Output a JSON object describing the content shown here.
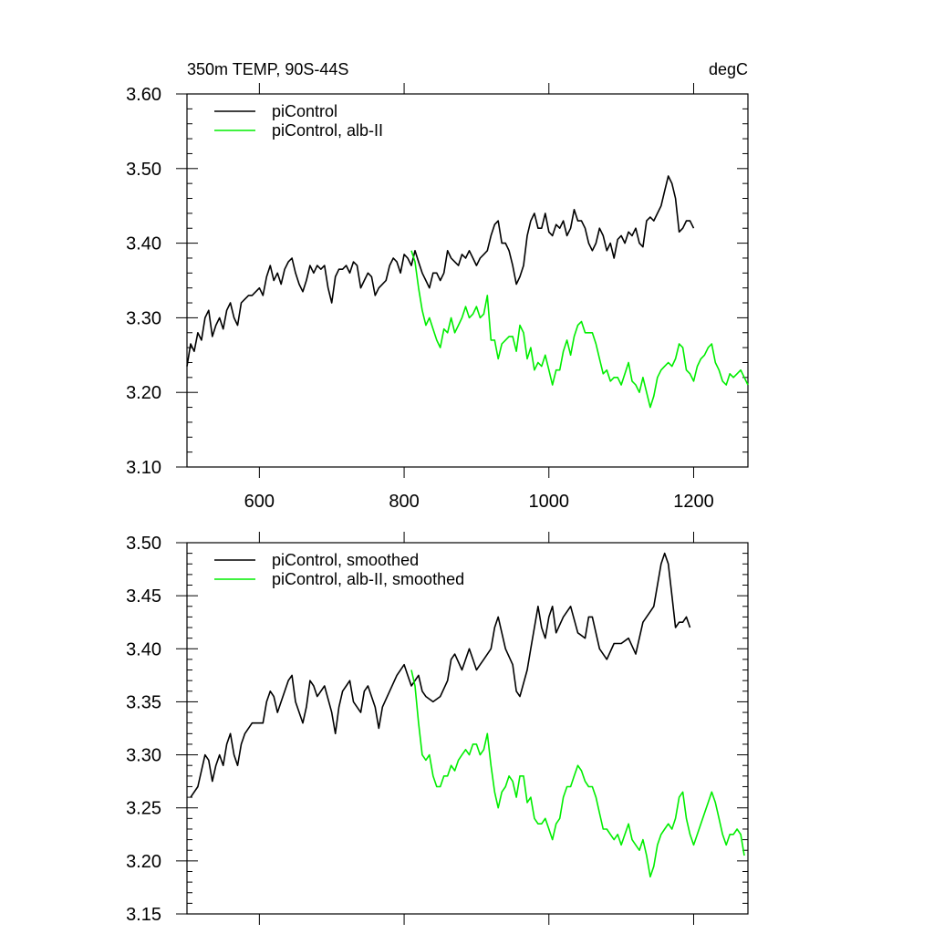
{
  "header": {
    "title": "350m TEMP, 90S-44S",
    "units": "degC"
  },
  "colors": {
    "piControl": "#000000",
    "alb": "#00ee00",
    "axis": "#000000"
  },
  "chart_data": [
    {
      "type": "line",
      "title": "350m TEMP, 90S-44S",
      "units": "degC",
      "xlim": [
        500,
        1275
      ],
      "ylim": [
        3.1,
        3.6
      ],
      "x_ticks": [
        600,
        800,
        1000,
        1200
      ],
      "x_tick_labels": [
        "600",
        "800",
        "1000",
        "1200"
      ],
      "y_ticks": [
        3.1,
        3.2,
        3.3,
        3.4,
        3.5,
        3.6
      ],
      "y_tick_labels": [
        "3.10",
        "3.20",
        "3.30",
        "3.40",
        "3.50",
        "3.60"
      ],
      "legend_position": "top-left",
      "series": [
        {
          "name": "piControl",
          "color": "#000000",
          "x": [
            500,
            505,
            510,
            515,
            520,
            525,
            530,
            535,
            540,
            545,
            550,
            555,
            560,
            565,
            570,
            575,
            580,
            585,
            590,
            595,
            600,
            605,
            610,
            615,
            620,
            625,
            630,
            635,
            640,
            645,
            650,
            655,
            660,
            665,
            670,
            675,
            680,
            685,
            690,
            695,
            700,
            705,
            710,
            715,
            720,
            725,
            730,
            735,
            740,
            745,
            750,
            755,
            760,
            765,
            770,
            775,
            780,
            785,
            790,
            795,
            800,
            805,
            810,
            815,
            820,
            825,
            830,
            835,
            840,
            845,
            850,
            855,
            860,
            865,
            870,
            875,
            880,
            885,
            890,
            895,
            900,
            905,
            910,
            915,
            920,
            925,
            930,
            935,
            940,
            945,
            950,
            955,
            960,
            965,
            970,
            975,
            980,
            985,
            990,
            995,
            1000,
            1005,
            1010,
            1015,
            1020,
            1025,
            1030,
            1035,
            1040,
            1045,
            1050,
            1055,
            1060,
            1065,
            1070,
            1075,
            1080,
            1085,
            1090,
            1095,
            1100,
            1105,
            1110,
            1115,
            1120,
            1125,
            1130,
            1135,
            1140,
            1145,
            1150,
            1155,
            1160,
            1165,
            1170,
            1175,
            1180,
            1185,
            1190,
            1195,
            1200
          ],
          "values": [
            3.235,
            3.265,
            3.255,
            3.28,
            3.27,
            3.3,
            3.31,
            3.275,
            3.29,
            3.3,
            3.285,
            3.31,
            3.32,
            3.3,
            3.29,
            3.32,
            3.325,
            3.33,
            3.33,
            3.335,
            3.34,
            3.33,
            3.355,
            3.37,
            3.35,
            3.36,
            3.345,
            3.365,
            3.375,
            3.38,
            3.36,
            3.345,
            3.335,
            3.35,
            3.37,
            3.36,
            3.37,
            3.365,
            3.37,
            3.34,
            3.32,
            3.355,
            3.365,
            3.365,
            3.37,
            3.36,
            3.375,
            3.37,
            3.34,
            3.35,
            3.36,
            3.355,
            3.33,
            3.34,
            3.345,
            3.35,
            3.37,
            3.38,
            3.375,
            3.36,
            3.385,
            3.38,
            3.37,
            3.39,
            3.375,
            3.36,
            3.35,
            3.34,
            3.36,
            3.36,
            3.35,
            3.36,
            3.39,
            3.38,
            3.375,
            3.37,
            3.385,
            3.38,
            3.39,
            3.38,
            3.37,
            3.38,
            3.385,
            3.39,
            3.41,
            3.425,
            3.43,
            3.4,
            3.4,
            3.39,
            3.37,
            3.345,
            3.355,
            3.37,
            3.41,
            3.43,
            3.44,
            3.42,
            3.42,
            3.44,
            3.415,
            3.41,
            3.425,
            3.42,
            3.43,
            3.41,
            3.42,
            3.445,
            3.43,
            3.43,
            3.42,
            3.4,
            3.39,
            3.4,
            3.42,
            3.41,
            3.39,
            3.4,
            3.38,
            3.405,
            3.41,
            3.4,
            3.415,
            3.41,
            3.42,
            3.4,
            3.395,
            3.43,
            3.435,
            3.43,
            3.44,
            3.45,
            3.47,
            3.49,
            3.48,
            3.46,
            3.415,
            3.42,
            3.43,
            3.43,
            3.42
          ]
        },
        {
          "name": "piControl, alb-II",
          "color": "#00ee00",
          "x": [
            810,
            815,
            820,
            825,
            830,
            835,
            840,
            845,
            850,
            855,
            860,
            865,
            870,
            875,
            880,
            885,
            890,
            895,
            900,
            905,
            910,
            915,
            920,
            925,
            930,
            935,
            940,
            945,
            950,
            955,
            960,
            965,
            970,
            975,
            980,
            985,
            990,
            995,
            1000,
            1005,
            1010,
            1015,
            1020,
            1025,
            1030,
            1035,
            1040,
            1045,
            1050,
            1055,
            1060,
            1065,
            1070,
            1075,
            1080,
            1085,
            1090,
            1095,
            1100,
            1105,
            1110,
            1115,
            1120,
            1125,
            1130,
            1135,
            1140,
            1145,
            1150,
            1155,
            1160,
            1165,
            1170,
            1175,
            1180,
            1185,
            1190,
            1195,
            1200,
            1205,
            1210,
            1215,
            1220,
            1225,
            1230,
            1235,
            1240,
            1245,
            1250,
            1255,
            1260,
            1265,
            1270,
            1275
          ],
          "values": [
            3.39,
            3.375,
            3.34,
            3.31,
            3.29,
            3.3,
            3.285,
            3.27,
            3.26,
            3.285,
            3.28,
            3.3,
            3.28,
            3.29,
            3.3,
            3.315,
            3.3,
            3.305,
            3.315,
            3.3,
            3.305,
            3.33,
            3.27,
            3.27,
            3.245,
            3.265,
            3.27,
            3.275,
            3.275,
            3.255,
            3.29,
            3.28,
            3.245,
            3.26,
            3.23,
            3.24,
            3.235,
            3.25,
            3.23,
            3.21,
            3.23,
            3.23,
            3.255,
            3.27,
            3.25,
            3.275,
            3.29,
            3.295,
            3.28,
            3.28,
            3.28,
            3.265,
            3.245,
            3.225,
            3.23,
            3.215,
            3.22,
            3.22,
            3.21,
            3.225,
            3.24,
            3.215,
            3.21,
            3.2,
            3.22,
            3.2,
            3.18,
            3.195,
            3.22,
            3.23,
            3.235,
            3.24,
            3.235,
            3.245,
            3.265,
            3.26,
            3.23,
            3.225,
            3.215,
            3.235,
            3.245,
            3.25,
            3.26,
            3.265,
            3.24,
            3.23,
            3.215,
            3.21,
            3.225,
            3.22,
            3.225,
            3.23,
            3.22,
            3.21
          ]
        }
      ]
    },
    {
      "type": "line",
      "xlim": [
        500,
        1275
      ],
      "ylim": [
        3.15,
        3.5
      ],
      "x_ticks": [
        600,
        800,
        1000,
        1200
      ],
      "y_ticks": [
        3.15,
        3.2,
        3.25,
        3.3,
        3.35,
        3.4,
        3.45,
        3.5
      ],
      "y_tick_labels": [
        "3.15",
        "3.20",
        "3.25",
        "3.30",
        "3.35",
        "3.40",
        "3.45",
        "3.50"
      ],
      "legend_position": "top-left",
      "series": [
        {
          "name": "piControl, smoothed",
          "color": "#000000",
          "x": [
            505,
            515,
            525,
            530,
            535,
            540,
            545,
            550,
            555,
            560,
            565,
            570,
            575,
            580,
            590,
            600,
            605,
            610,
            615,
            620,
            625,
            630,
            640,
            645,
            650,
            660,
            665,
            670,
            675,
            680,
            690,
            700,
            705,
            710,
            715,
            720,
            725,
            730,
            740,
            745,
            750,
            760,
            765,
            770,
            780,
            790,
            800,
            805,
            810,
            820,
            825,
            830,
            840,
            850,
            860,
            865,
            870,
            880,
            890,
            895,
            900,
            905,
            910,
            920,
            925,
            930,
            940,
            950,
            955,
            960,
            970,
            975,
            980,
            985,
            990,
            995,
            1000,
            1005,
            1010,
            1020,
            1030,
            1040,
            1050,
            1055,
            1060,
            1070,
            1080,
            1090,
            1100,
            1110,
            1120,
            1130,
            1140,
            1145,
            1150,
            1155,
            1160,
            1165,
            1170,
            1175,
            1180,
            1185,
            1190,
            1195
          ],
          "values": [
            3.26,
            3.27,
            3.3,
            3.295,
            3.275,
            3.29,
            3.3,
            3.29,
            3.31,
            3.32,
            3.3,
            3.29,
            3.31,
            3.32,
            3.33,
            3.33,
            3.33,
            3.35,
            3.36,
            3.355,
            3.34,
            3.35,
            3.37,
            3.375,
            3.35,
            3.33,
            3.345,
            3.37,
            3.365,
            3.355,
            3.365,
            3.34,
            3.32,
            3.345,
            3.36,
            3.365,
            3.37,
            3.35,
            3.34,
            3.36,
            3.365,
            3.345,
            3.325,
            3.345,
            3.36,
            3.375,
            3.385,
            3.375,
            3.365,
            3.375,
            3.36,
            3.355,
            3.35,
            3.355,
            3.37,
            3.39,
            3.395,
            3.38,
            3.4,
            3.39,
            3.38,
            3.385,
            3.39,
            3.4,
            3.42,
            3.43,
            3.4,
            3.385,
            3.36,
            3.355,
            3.38,
            3.4,
            3.42,
            3.44,
            3.42,
            3.41,
            3.43,
            3.44,
            3.415,
            3.43,
            3.44,
            3.415,
            3.41,
            3.43,
            3.43,
            3.4,
            3.39,
            3.405,
            3.405,
            3.41,
            3.395,
            3.425,
            3.435,
            3.44,
            3.46,
            3.48,
            3.49,
            3.48,
            3.45,
            3.42,
            3.425,
            3.425,
            3.43,
            3.42
          ]
        },
        {
          "name": "piControl, alb-II, smoothed",
          "color": "#00ee00",
          "x": [
            810,
            815,
            820,
            825,
            830,
            835,
            840,
            845,
            850,
            855,
            860,
            865,
            870,
            875,
            880,
            885,
            890,
            895,
            900,
            905,
            910,
            915,
            920,
            925,
            930,
            935,
            940,
            945,
            950,
            955,
            960,
            965,
            970,
            975,
            980,
            985,
            990,
            995,
            1000,
            1005,
            1010,
            1015,
            1020,
            1025,
            1030,
            1035,
            1040,
            1045,
            1050,
            1055,
            1060,
            1065,
            1070,
            1075,
            1080,
            1085,
            1090,
            1095,
            1100,
            1105,
            1110,
            1115,
            1120,
            1125,
            1130,
            1135,
            1140,
            1145,
            1150,
            1155,
            1160,
            1165,
            1170,
            1175,
            1180,
            1185,
            1190,
            1195,
            1200,
            1205,
            1210,
            1215,
            1220,
            1225,
            1230,
            1235,
            1240,
            1245,
            1250,
            1255,
            1260,
            1265,
            1270
          ],
          "values": [
            3.38,
            3.365,
            3.33,
            3.3,
            3.295,
            3.3,
            3.28,
            3.27,
            3.27,
            3.28,
            3.28,
            3.29,
            3.285,
            3.295,
            3.3,
            3.305,
            3.3,
            3.31,
            3.31,
            3.3,
            3.305,
            3.32,
            3.29,
            3.265,
            3.25,
            3.265,
            3.27,
            3.28,
            3.275,
            3.26,
            3.28,
            3.28,
            3.255,
            3.26,
            3.24,
            3.235,
            3.235,
            3.24,
            3.23,
            3.22,
            3.235,
            3.24,
            3.26,
            3.27,
            3.27,
            3.28,
            3.29,
            3.285,
            3.275,
            3.27,
            3.27,
            3.26,
            3.245,
            3.23,
            3.23,
            3.225,
            3.22,
            3.225,
            3.215,
            3.225,
            3.235,
            3.22,
            3.215,
            3.21,
            3.22,
            3.205,
            3.185,
            3.195,
            3.215,
            3.225,
            3.23,
            3.235,
            3.23,
            3.24,
            3.26,
            3.265,
            3.24,
            3.225,
            3.215,
            3.225,
            3.235,
            3.245,
            3.255,
            3.265,
            3.255,
            3.24,
            3.225,
            3.215,
            3.225,
            3.225,
            3.23,
            3.225,
            3.205
          ]
        }
      ]
    }
  ]
}
